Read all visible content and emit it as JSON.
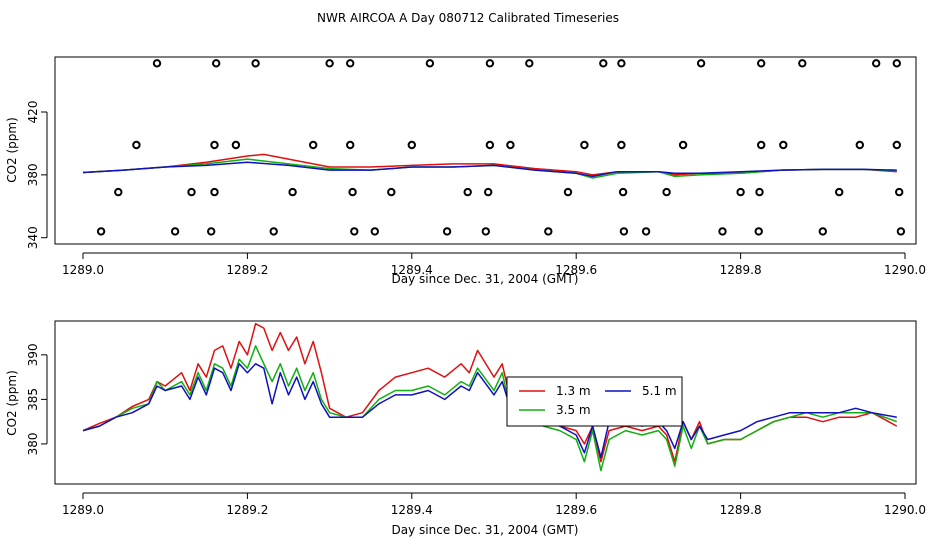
{
  "title": "NWR AIRCOA A  Day 080712  Calibrated Timeseries",
  "colors": {
    "1.3 m": "#e01010",
    "3.5 m": "#10b010",
    "5.1 m": "#1010c0"
  },
  "chart_data": [
    {
      "type": "scatter",
      "title": "NWR AIRCOA A  Day 080712  Calibrated Timeseries",
      "xlabel": "Day since Dec. 31, 2004 (GMT)",
      "ylabel": "CO2 (ppm)",
      "xlim": [
        1289.0,
        1290.0
      ],
      "ylim": [
        336,
        455
      ],
      "xticks": [
        "1289.0",
        "1289.2",
        "1289.4",
        "1289.6",
        "1289.8",
        "1290.0"
      ],
      "yticks": [
        "340",
        "380",
        "420"
      ],
      "xtick_values": [
        1289.0,
        1289.2,
        1289.4,
        1289.6,
        1289.8,
        1290.0
      ],
      "ytick_values": [
        340,
        380,
        420
      ],
      "scatter_levels": [
        344,
        369,
        399,
        451
      ],
      "scatter": {
        "x": [
          1289.09,
          1289.162,
          1289.21,
          1289.3,
          1289.325,
          1289.422,
          1289.495,
          1289.543,
          1289.633,
          1289.655,
          1289.752,
          1289.825,
          1289.875,
          1289.965,
          1289.99,
          1289.065,
          1289.16,
          1289.186,
          1289.28,
          1289.325,
          1289.4,
          1289.495,
          1289.52,
          1289.61,
          1289.655,
          1289.73,
          1289.825,
          1289.852,
          1289.945,
          1289.99,
          1289.043,
          1289.132,
          1289.16,
          1289.255,
          1289.328,
          1289.375,
          1289.468,
          1289.493,
          1289.59,
          1289.657,
          1289.71,
          1289.8,
          1289.823,
          1289.92,
          1289.993,
          1289.022,
          1289.112,
          1289.156,
          1289.232,
          1289.33,
          1289.355,
          1289.443,
          1289.49,
          1289.566,
          1289.658,
          1289.685,
          1289.778,
          1289.822,
          1289.9,
          1289.995
        ],
        "y": [
          451,
          451,
          451,
          451,
          451,
          451,
          451,
          451,
          451,
          451,
          451,
          451,
          451,
          451,
          451,
          399,
          399,
          399,
          399,
          399,
          399,
          399,
          399,
          399,
          399,
          399,
          399,
          399,
          399,
          399,
          369,
          369,
          369,
          369,
          369,
          369,
          369,
          369,
          369,
          369,
          369,
          369,
          369,
          369,
          369,
          344,
          344,
          344,
          344,
          344,
          344,
          344,
          344,
          344,
          344,
          344,
          344,
          344,
          344,
          344
        ]
      },
      "series": [
        {
          "name": "1.3 m",
          "x": [
            1289.0,
            1289.05,
            1289.1,
            1289.15,
            1289.2,
            1289.22,
            1289.25,
            1289.3,
            1289.35,
            1289.4,
            1289.45,
            1289.5,
            1289.55,
            1289.6,
            1289.62,
            1289.65,
            1289.7,
            1289.72,
            1289.75,
            1289.8,
            1289.85,
            1289.9,
            1289.95,
            1289.99
          ],
          "values": [
            381.5,
            383,
            385,
            388,
            392,
            393,
            390,
            385,
            385,
            386,
            387,
            387,
            384,
            382,
            380,
            382,
            382,
            380,
            381,
            381,
            383,
            383.5,
            383.5,
            382
          ]
        },
        {
          "name": "3.5 m",
          "x": [
            1289.0,
            1289.05,
            1289.1,
            1289.15,
            1289.2,
            1289.25,
            1289.3,
            1289.35,
            1289.4,
            1289.45,
            1289.5,
            1289.55,
            1289.6,
            1289.62,
            1289.65,
            1289.7,
            1289.72,
            1289.75,
            1289.8,
            1289.85,
            1289.9,
            1289.95,
            1289.99
          ],
          "values": [
            381.5,
            383,
            385,
            387,
            390,
            387,
            384,
            383,
            385,
            385,
            386,
            383,
            381,
            378,
            381,
            382,
            379,
            380,
            381,
            383,
            383.5,
            383.5,
            382.5
          ]
        },
        {
          "name": "5.1 m",
          "x": [
            1289.0,
            1289.05,
            1289.1,
            1289.15,
            1289.2,
            1289.25,
            1289.3,
            1289.35,
            1289.4,
            1289.45,
            1289.5,
            1289.55,
            1289.6,
            1289.62,
            1289.65,
            1289.7,
            1289.72,
            1289.75,
            1289.8,
            1289.85,
            1289.9,
            1289.95,
            1289.99
          ],
          "values": [
            381.5,
            383,
            385,
            386,
            388,
            386,
            383,
            383,
            385,
            385,
            386,
            383,
            381,
            379,
            382,
            382,
            381,
            381,
            382,
            383,
            383.5,
            383.5,
            383
          ]
        }
      ]
    },
    {
      "type": "line",
      "xlabel": "Day since Dec. 31, 2004 (GMT)",
      "ylabel": "CO2 (ppm)",
      "xlim": [
        1289.0,
        1290.0
      ],
      "ylim": [
        375.5,
        393.8
      ],
      "xticks": [
        "1289.0",
        "1289.2",
        "1289.4",
        "1289.6",
        "1289.8",
        "1290.0"
      ],
      "yticks": [
        "380",
        "385",
        "390"
      ],
      "xtick_values": [
        1289.0,
        1289.2,
        1289.4,
        1289.6,
        1289.8,
        1290.0
      ],
      "ytick_values": [
        380,
        385,
        390
      ],
      "legend": {
        "placement": "center-right",
        "entries": [
          "1.3 m",
          "3.5 m",
          "5.1 m"
        ]
      },
      "series": [
        {
          "name": "1.3 m",
          "x": [
            1289.0,
            1289.02,
            1289.04,
            1289.06,
            1289.08,
            1289.09,
            1289.1,
            1289.12,
            1289.13,
            1289.14,
            1289.15,
            1289.16,
            1289.17,
            1289.18,
            1289.19,
            1289.2,
            1289.21,
            1289.22,
            1289.23,
            1289.24,
            1289.25,
            1289.26,
            1289.27,
            1289.28,
            1289.29,
            1289.3,
            1289.32,
            1289.34,
            1289.36,
            1289.38,
            1289.4,
            1289.42,
            1289.44,
            1289.46,
            1289.47,
            1289.48,
            1289.5,
            1289.51,
            1289.52,
            1289.54,
            1289.56,
            1289.58,
            1289.6,
            1289.61,
            1289.62,
            1289.63,
            1289.64,
            1289.66,
            1289.68,
            1289.7,
            1289.71,
            1289.72,
            1289.73,
            1289.74,
            1289.75,
            1289.76,
            1289.78,
            1289.8,
            1289.82,
            1289.84,
            1289.86,
            1289.88,
            1289.9,
            1289.92,
            1289.94,
            1289.96,
            1289.99
          ],
          "values": [
            381.5,
            382.3,
            383.0,
            384.2,
            385.0,
            387.0,
            386.5,
            388.0,
            386.0,
            389.0,
            387.5,
            390.5,
            391.0,
            388.5,
            391.5,
            390.0,
            393.5,
            393.0,
            390.5,
            392.5,
            390.5,
            392.0,
            389.0,
            391.5,
            388.0,
            384.0,
            383.0,
            383.5,
            386.0,
            387.5,
            388.0,
            388.5,
            387.5,
            389.0,
            388.0,
            390.5,
            387.5,
            389.0,
            385.0,
            384.0,
            383.0,
            382.0,
            381.5,
            380.0,
            382.0,
            378.0,
            381.5,
            382.0,
            381.5,
            382.0,
            381.0,
            378.0,
            382.5,
            380.5,
            382.5,
            380.0,
            380.5,
            380.5,
            381.5,
            382.5,
            383.0,
            383.0,
            382.5,
            383.0,
            383.0,
            383.5,
            382.0
          ]
        },
        {
          "name": "3.5 m",
          "x": [
            1289.0,
            1289.02,
            1289.04,
            1289.06,
            1289.08,
            1289.09,
            1289.1,
            1289.12,
            1289.13,
            1289.14,
            1289.15,
            1289.16,
            1289.17,
            1289.18,
            1289.19,
            1289.2,
            1289.21,
            1289.22,
            1289.23,
            1289.24,
            1289.25,
            1289.26,
            1289.27,
            1289.28,
            1289.29,
            1289.3,
            1289.32,
            1289.34,
            1289.36,
            1289.38,
            1289.4,
            1289.42,
            1289.44,
            1289.46,
            1289.47,
            1289.48,
            1289.5,
            1289.51,
            1289.52,
            1289.54,
            1289.56,
            1289.58,
            1289.6,
            1289.61,
            1289.62,
            1289.63,
            1289.64,
            1289.66,
            1289.68,
            1289.7,
            1289.71,
            1289.72,
            1289.73,
            1289.74,
            1289.75,
            1289.76,
            1289.78,
            1289.8,
            1289.82,
            1289.84,
            1289.86,
            1289.88,
            1289.9,
            1289.92,
            1289.94,
            1289.96,
            1289.99
          ],
          "values": [
            381.5,
            382.0,
            383.0,
            384.0,
            384.5,
            387.0,
            386.0,
            387.0,
            385.5,
            388.0,
            386.0,
            389.0,
            388.5,
            386.5,
            389.5,
            388.5,
            391.0,
            389.0,
            387.0,
            389.0,
            386.5,
            388.5,
            386.0,
            388.0,
            385.0,
            383.5,
            383.0,
            383.0,
            385.0,
            386.0,
            386.0,
            386.5,
            385.5,
            387.0,
            386.5,
            388.5,
            386.0,
            388.0,
            384.0,
            383.0,
            382.0,
            381.5,
            380.5,
            378.0,
            381.5,
            377.0,
            380.5,
            381.5,
            381.0,
            381.5,
            380.5,
            377.5,
            382.0,
            379.5,
            382.0,
            380.0,
            380.5,
            380.5,
            381.5,
            382.5,
            383.0,
            383.5,
            383.0,
            383.5,
            383.5,
            383.5,
            382.5
          ]
        },
        {
          "name": "5.1 m",
          "x": [
            1289.0,
            1289.02,
            1289.04,
            1289.06,
            1289.08,
            1289.09,
            1289.1,
            1289.12,
            1289.13,
            1289.14,
            1289.15,
            1289.16,
            1289.17,
            1289.18,
            1289.19,
            1289.2,
            1289.21,
            1289.22,
            1289.23,
            1289.24,
            1289.25,
            1289.26,
            1289.27,
            1289.28,
            1289.29,
            1289.3,
            1289.32,
            1289.34,
            1289.36,
            1289.38,
            1289.4,
            1289.42,
            1289.44,
            1289.46,
            1289.47,
            1289.48,
            1289.5,
            1289.51,
            1289.52,
            1289.54,
            1289.56,
            1289.58,
            1289.6,
            1289.61,
            1289.62,
            1289.63,
            1289.64,
            1289.66,
            1289.68,
            1289.7,
            1289.71,
            1289.72,
            1289.73,
            1289.74,
            1289.75,
            1289.76,
            1289.78,
            1289.8,
            1289.82,
            1289.84,
            1289.86,
            1289.88,
            1289.9,
            1289.92,
            1289.94,
            1289.96,
            1289.99
          ],
          "values": [
            381.5,
            382.0,
            383.0,
            383.5,
            384.5,
            386.5,
            386.0,
            386.5,
            385.0,
            387.5,
            385.5,
            388.5,
            388.0,
            386.0,
            389.0,
            388.0,
            389.0,
            388.5,
            384.5,
            388.0,
            385.5,
            387.5,
            385.0,
            387.0,
            384.5,
            383.0,
            383.0,
            383.0,
            384.5,
            385.5,
            385.5,
            386.0,
            385.0,
            386.5,
            386.0,
            388.0,
            385.5,
            387.0,
            384.0,
            383.0,
            382.5,
            382.0,
            381.0,
            379.0,
            382.0,
            378.5,
            382.5,
            382.5,
            382.0,
            382.5,
            381.5,
            379.5,
            382.5,
            380.5,
            382.0,
            380.5,
            381.0,
            381.5,
            382.5,
            383.0,
            383.5,
            383.5,
            383.5,
            383.5,
            384.0,
            383.5,
            383.0
          ]
        }
      ]
    }
  ]
}
